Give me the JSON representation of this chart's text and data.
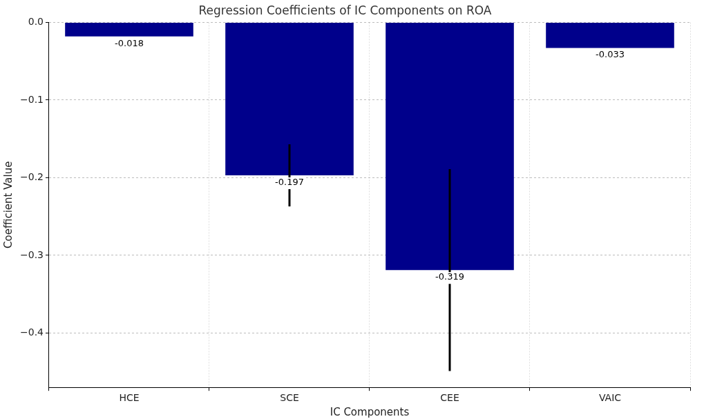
{
  "chart_data": {
    "type": "bar",
    "title": "Regression Coefficients of IC Components on ROA",
    "xlabel": "IC Components",
    "ylabel": "Coefficient Value",
    "categories": [
      "HCE",
      "SCE",
      "CEE",
      "VAIC"
    ],
    "values": [
      -0.018,
      -0.197,
      -0.319,
      -0.033
    ],
    "errors": [
      null,
      0.04,
      0.13,
      null
    ],
    "color": "#00008b",
    "ylim": [
      -0.47,
      0
    ],
    "yticks": [
      {
        "value": 0,
        "label": "0.0"
      },
      {
        "value": -0.1,
        "label": "−0.1"
      },
      {
        "value": -0.2,
        "label": "−0.2"
      },
      {
        "value": -0.3,
        "label": "−0.3"
      },
      {
        "value": -0.4,
        "label": "−0.4"
      }
    ],
    "grid": true,
    "data_labels": true
  }
}
